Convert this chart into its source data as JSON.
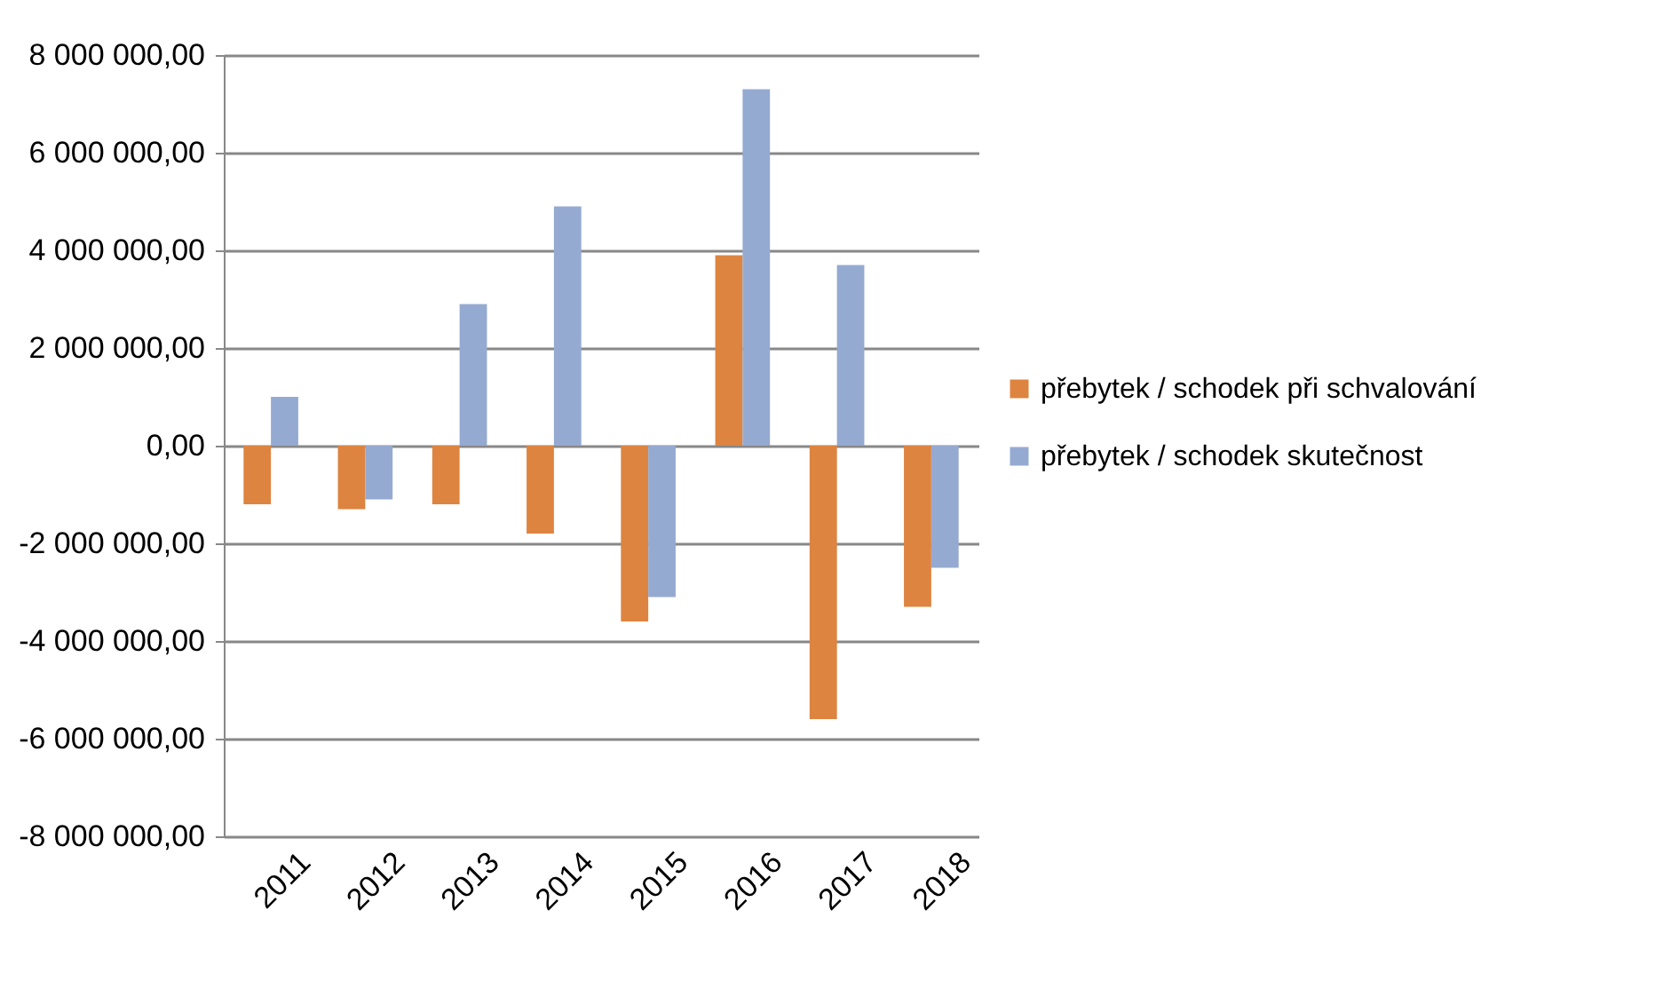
{
  "chart_data": {
    "type": "bar",
    "categories": [
      "2011",
      "2012",
      "2013",
      "2014",
      "2015",
      "2016",
      "2017",
      "2018"
    ],
    "series": [
      {
        "name": "přebytek / schodek při schvalování",
        "color": "#dd8440",
        "values": [
          -1200000,
          -1300000,
          -1200000,
          -1800000,
          -3600000,
          3900000,
          -5600000,
          -3300000
        ]
      },
      {
        "name": "přebytek / schodek skutečnost",
        "color": "#95aad1",
        "values": [
          1000000,
          -1100000,
          2900000,
          4900000,
          -3100000,
          7300000,
          3700000,
          -2500000
        ]
      }
    ],
    "ylim": [
      -8000000,
      8000000
    ],
    "yticks": [
      {
        "value": -8000000,
        "label": "-8 000 000,00"
      },
      {
        "value": -6000000,
        "label": "-6 000 000,00"
      },
      {
        "value": -4000000,
        "label": "-4 000 000,00"
      },
      {
        "value": -2000000,
        "label": "-2 000 000,00"
      },
      {
        "value": 0,
        "label": "0,00"
      },
      {
        "value": 2000000,
        "label": "2 000 000,00"
      },
      {
        "value": 4000000,
        "label": "4 000 000,00"
      },
      {
        "value": 6000000,
        "label": "6 000 000,00"
      },
      {
        "value": 8000000,
        "label": "8 000 000,00"
      }
    ],
    "grid": "y",
    "legend": "right"
  }
}
